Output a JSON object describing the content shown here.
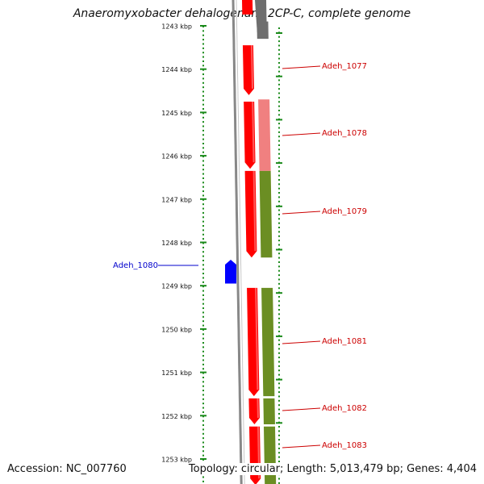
{
  "title": "Anaeromyxobacter dehalogenans 2CP-C, complete genome",
  "footer": {
    "accession": "Accession: NC_007760",
    "summary": "Topology: circular; Length: 5,013,479 bp; Genes: 4,404"
  },
  "colors": {
    "tick": "#1a8a1a",
    "backbone": "#888888",
    "gene_red": "#ff0000",
    "gene_pink": "#f08080",
    "gene_olive": "#6b8e23",
    "gene_blue": "#0000ff",
    "gene_grey": "#6e6e6e",
    "gene_purple": "#8070d0",
    "label_red": "#cc0000",
    "label_blue": "#0000cc"
  },
  "axis": {
    "unit": "kbp",
    "ticks": [
      {
        "kbp": 1243,
        "label": "1243 kbp"
      },
      {
        "kbp": 1244,
        "label": "1244 kbp"
      },
      {
        "kbp": 1245,
        "label": "1245 kbp"
      },
      {
        "kbp": 1246,
        "label": "1246 kbp"
      },
      {
        "kbp": 1247,
        "label": "1247 kbp"
      },
      {
        "kbp": 1248,
        "label": "1248 kbp"
      },
      {
        "kbp": 1249,
        "label": "1249 kbp"
      },
      {
        "kbp": 1250,
        "label": "1250 kbp"
      },
      {
        "kbp": 1251,
        "label": "1251 kbp"
      },
      {
        "kbp": 1252,
        "label": "1252 kbp"
      },
      {
        "kbp": 1253,
        "label": "1253 kbp"
      }
    ]
  },
  "genes": [
    {
      "name": "Adeh_1077",
      "strand": "minus",
      "start_kbp": 1243.45,
      "end_kbp": 1244.6,
      "color": "gene_red",
      "labeled": true
    },
    {
      "name": "Adeh_1078",
      "strand": "minus",
      "start_kbp": 1244.75,
      "end_kbp": 1246.3,
      "color": "gene_red",
      "labeled": true
    },
    {
      "name": "Adeh_1079",
      "strand": "minus",
      "start_kbp": 1246.35,
      "end_kbp": 1248.35,
      "color": "gene_red",
      "labeled": true
    },
    {
      "name": "Adeh_1080",
      "strand": "plus",
      "start_kbp": 1248.4,
      "end_kbp": 1248.95,
      "color": "gene_blue",
      "labeled": true
    },
    {
      "name": "Adeh_1081",
      "strand": "minus",
      "start_kbp": 1249.05,
      "end_kbp": 1251.55,
      "color": "gene_red",
      "labeled": true
    },
    {
      "name": "Adeh_1082",
      "strand": "minus",
      "start_kbp": 1251.6,
      "end_kbp": 1252.2,
      "color": "gene_red",
      "labeled": true
    },
    {
      "name": "Adeh_1083",
      "strand": "minus",
      "start_kbp": 1252.25,
      "end_kbp": 1253.6,
      "color": "gene_red",
      "labeled": true
    }
  ]
}
